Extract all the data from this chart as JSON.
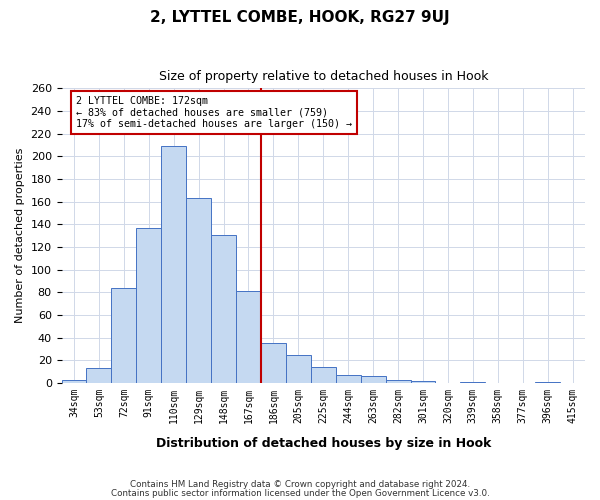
{
  "title": "2, LYTTEL COMBE, HOOK, RG27 9UJ",
  "subtitle": "Size of property relative to detached houses in Hook",
  "xlabel": "Distribution of detached houses by size in Hook",
  "ylabel": "Number of detached properties",
  "footnote1": "Contains HM Land Registry data © Crown copyright and database right 2024.",
  "footnote2": "Contains public sector information licensed under the Open Government Licence v3.0.",
  "bins": [
    "34sqm",
    "53sqm",
    "72sqm",
    "91sqm",
    "110sqm",
    "129sqm",
    "148sqm",
    "167sqm",
    "186sqm",
    "205sqm",
    "225sqm",
    "244sqm",
    "263sqm",
    "282sqm",
    "301sqm",
    "320sqm",
    "339sqm",
    "358sqm",
    "377sqm",
    "396sqm",
    "415sqm"
  ],
  "values": [
    3,
    13,
    84,
    137,
    209,
    163,
    131,
    81,
    35,
    25,
    14,
    7,
    6,
    3,
    2,
    0,
    1,
    0,
    0,
    1,
    0
  ],
  "bar_color": "#c5d9f1",
  "bar_edge_color": "#4472c4",
  "vline_index": 7,
  "vline_color": "#c00000",
  "annotation_line1": "2 LYTTEL COMBE: 172sqm",
  "annotation_line2": "← 83% of detached houses are smaller (759)",
  "annotation_line3": "17% of semi-detached houses are larger (150) →",
  "grid_color": "#d0d8e8",
  "background_color": "#ffffff",
  "ylim": [
    0,
    260
  ],
  "yticks": [
    0,
    20,
    40,
    60,
    80,
    100,
    120,
    140,
    160,
    180,
    200,
    220,
    240,
    260
  ]
}
